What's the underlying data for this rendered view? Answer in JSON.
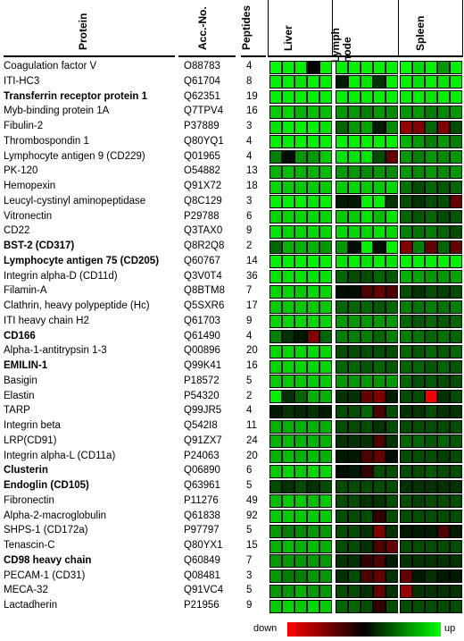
{
  "headers": {
    "protein": "Protein",
    "acc": "Acc.-No.",
    "peptides": "Peptides"
  },
  "tissues": [
    "Liver",
    "Lymph\nnode",
    "Spleen"
  ],
  "legend": {
    "low": "down",
    "high": "up"
  },
  "colors": {
    "up": "#00ff00",
    "down": "#ff0000",
    "mid": "#000000"
  },
  "rows": [
    {
      "name": "Coagulation factor V",
      "acc": "O88783",
      "pep": "4",
      "bold": false,
      "v": [
        1,
        0.95,
        0.95,
        0,
        0.95,
        0.95,
        0.95,
        0.95,
        0.95,
        0.95,
        1,
        0.85,
        0.95,
        0.6,
        0.95
      ]
    },
    {
      "name": "ITI-HC3",
      "acc": "Q61704",
      "pep": "8",
      "bold": false,
      "v": [
        0.95,
        0.95,
        0.9,
        0.95,
        0.95,
        0.1,
        0.95,
        0.9,
        0.2,
        0.95,
        0.95,
        0.9,
        0.95,
        0.9,
        0.95
      ]
    },
    {
      "name": "Transferrin receptor protein 1",
      "acc": "Q62351",
      "pep": "19",
      "bold": true,
      "v": [
        0.95,
        0.95,
        0.95,
        0.95,
        0.95,
        0.95,
        0.95,
        0.95,
        0.95,
        0.95,
        0.95,
        0.95,
        0.9,
        0.95,
        0.95
      ]
    },
    {
      "name": "Myb-binding protein 1A",
      "acc": "Q7TPV4",
      "pep": "16",
      "bold": false,
      "v": [
        0.8,
        0.85,
        0.7,
        0.75,
        0.75,
        0.6,
        0.6,
        0.5,
        0.6,
        0.55,
        0.6,
        0.6,
        0.5,
        0.55,
        0.6
      ]
    },
    {
      "name": "Fibulin-2",
      "acc": "P37889",
      "pep": "3",
      "bold": false,
      "v": [
        0.9,
        0.95,
        0.95,
        0.95,
        0.9,
        0.4,
        0.6,
        0.65,
        0.1,
        0.55,
        -0.6,
        -0.5,
        0.4,
        -0.5,
        0.3
      ]
    },
    {
      "name": "Thrombospondin 1",
      "acc": "Q80YQ1",
      "pep": "4",
      "bold": false,
      "v": [
        0.95,
        0.95,
        0.95,
        0.95,
        0.95,
        0.95,
        0.95,
        0.95,
        0.95,
        0.95,
        0.7,
        0.6,
        0.5,
        0.6,
        0.5
      ]
    },
    {
      "name": "Lymphocyte antigen 9 (CD229)",
      "acc": "Q01965",
      "pep": "4",
      "bold": false,
      "v": [
        0.5,
        0.05,
        0.6,
        0.6,
        0.8,
        0.9,
        0.9,
        0.9,
        0.3,
        -0.4,
        0.6,
        0.5,
        0.6,
        0.55,
        0.6
      ]
    },
    {
      "name": "PK-120",
      "acc": "O54882",
      "pep": "13",
      "bold": false,
      "v": [
        0.7,
        0.75,
        0.7,
        0.7,
        0.75,
        0.6,
        0.6,
        0.55,
        0.6,
        0.55,
        0.6,
        0.55,
        0.6,
        0.55,
        0.6
      ]
    },
    {
      "name": "Hemopexin",
      "acc": "Q91X72",
      "pep": "18",
      "bold": false,
      "v": [
        0.85,
        0.8,
        0.8,
        0.8,
        0.8,
        0.8,
        0.85,
        0.8,
        0.8,
        0.85,
        0.45,
        0.3,
        0.4,
        0.35,
        0.4
      ]
    },
    {
      "name": "Leucyl-cystinyl aminopeptidase",
      "acc": "Q8C129",
      "pep": "3",
      "bold": false,
      "v": [
        0.95,
        0.95,
        0.95,
        0.9,
        0.95,
        0.1,
        0.1,
        0.95,
        0.95,
        0.2,
        0.3,
        0.2,
        0.3,
        0.3,
        -0.4
      ]
    },
    {
      "name": "Vitronectin",
      "acc": "P29788",
      "pep": "6",
      "bold": false,
      "v": [
        0.85,
        0.85,
        0.85,
        0.85,
        0.85,
        0.8,
        0.8,
        0.9,
        0.75,
        0.9,
        0.4,
        0.35,
        0.4,
        0.3,
        0.35
      ]
    },
    {
      "name": "CD22",
      "acc": "Q3TAX0",
      "pep": "9",
      "bold": false,
      "v": [
        0.9,
        0.85,
        0.85,
        0.85,
        0.85,
        0.85,
        0.85,
        0.85,
        0.9,
        0.85,
        0.5,
        0.45,
        0.5,
        0.4,
        0.3
      ]
    },
    {
      "name": "BST-2  (CD317)",
      "acc": "Q8R2Q8",
      "pep": "2",
      "bold": true,
      "v": [
        0.4,
        0.7,
        0.7,
        0.7,
        0.6,
        0.6,
        0.05,
        0.95,
        0.05,
        0.95,
        -0.5,
        0.5,
        -0.4,
        0.4,
        -0.4
      ]
    },
    {
      "name": "Lymphocyte antigen 75 (CD205)",
      "acc": "Q60767",
      "pep": "14",
      "bold": true,
      "v": [
        0.95,
        0.95,
        0.95,
        0.95,
        0.95,
        0.9,
        0.95,
        0.9,
        0.95,
        0.9,
        0.95,
        0.95,
        0.95,
        0.95,
        0.95
      ]
    },
    {
      "name": "Integrin alpha-D (CD11d)",
      "acc": "Q3V0T4",
      "pep": "36",
      "bold": false,
      "v": [
        0.9,
        0.9,
        0.9,
        0.9,
        0.9,
        0.4,
        0.3,
        0.3,
        0.4,
        0.35,
        0.7,
        0.65,
        0.6,
        0.6,
        0.65
      ]
    },
    {
      "name": "Filamin-A",
      "acc": "Q8BTM8",
      "pep": "7",
      "bold": false,
      "v": [
        0.85,
        0.85,
        0.8,
        0.85,
        0.85,
        0.05,
        0.05,
        -0.3,
        -0.4,
        -0.3,
        0.3,
        0.2,
        0.3,
        0.25,
        0.3
      ]
    },
    {
      "name": "Clathrin, heavy polypeptide (Hc)",
      "acc": "Q5SXR6",
      "pep": "17",
      "bold": false,
      "v": [
        0.8,
        0.8,
        0.8,
        0.8,
        0.8,
        0.4,
        0.4,
        0.4,
        0.35,
        0.4,
        0.5,
        0.45,
        0.5,
        0.45,
        0.5
      ]
    },
    {
      "name": "ITI heavy chain H2",
      "acc": "Q61703",
      "pep": "9",
      "bold": false,
      "v": [
        0.85,
        0.85,
        0.85,
        0.85,
        0.85,
        0.6,
        0.6,
        0.6,
        0.6,
        0.6,
        0.4,
        0.35,
        0.4,
        0.35,
        0.4
      ]
    },
    {
      "name": "CD166",
      "acc": "Q61490",
      "pep": "4",
      "bold": true,
      "v": [
        0.5,
        0.2,
        0.1,
        -0.5,
        0.4,
        0.5,
        0.5,
        0.5,
        0.4,
        0.5,
        0.5,
        0.45,
        0.4,
        0.45,
        0.4
      ]
    },
    {
      "name": "Alpha-1-antitrypsin 1-3",
      "acc": "Q00896",
      "pep": "20",
      "bold": false,
      "v": [
        0.85,
        0.85,
        0.85,
        0.85,
        0.85,
        0.3,
        0.3,
        0.3,
        0.3,
        0.3,
        0.4,
        0.35,
        0.4,
        0.35,
        0.4
      ]
    },
    {
      "name": "EMILIN-1",
      "acc": "Q99K41",
      "pep": "16",
      "bold": true,
      "v": [
        0.85,
        0.85,
        0.85,
        0.85,
        0.85,
        0.4,
        0.4,
        0.35,
        0.4,
        0.35,
        0.4,
        0.4,
        0.35,
        0.4,
        0.35
      ]
    },
    {
      "name": "Basigin",
      "acc": "P18572",
      "pep": "5",
      "bold": false,
      "v": [
        0.8,
        0.8,
        0.8,
        0.8,
        0.8,
        0.6,
        0.6,
        0.6,
        0.6,
        0.6,
        0.4,
        0.3,
        0.35,
        0.3,
        0.3
      ]
    },
    {
      "name": "Elastin",
      "acc": "P54320",
      "pep": "2",
      "bold": false,
      "v": [
        0.95,
        0.2,
        0.4,
        0.7,
        0.7,
        0.2,
        0.2,
        -0.4,
        -0.5,
        0.1,
        0.3,
        0.3,
        -0.95,
        0.2,
        0.3
      ]
    },
    {
      "name": "TARP",
      "acc": "Q99JR5",
      "pep": "4",
      "bold": false,
      "v": [
        0.1,
        0.2,
        0.15,
        0.2,
        0.1,
        0.3,
        0.3,
        0.4,
        -0.3,
        0.3,
        0.2,
        0.2,
        0.3,
        0.2,
        0.2
      ]
    },
    {
      "name": "Integrin beta",
      "acc": "Q542I8",
      "pep": "11",
      "bold": false,
      "v": [
        0.7,
        0.7,
        0.7,
        0.7,
        0.7,
        0.3,
        0.3,
        0.3,
        0.2,
        0.3,
        0.3,
        0.3,
        0.3,
        0.3,
        0.3
      ]
    },
    {
      "name": "LRP(CD91)",
      "acc": "Q91ZX7",
      "pep": "24",
      "bold": false,
      "v": [
        0.7,
        0.75,
        0.7,
        0.7,
        0.7,
        0.2,
        0.2,
        0.2,
        -0.3,
        0.2,
        0.4,
        0.4,
        0.35,
        0.4,
        0.35
      ]
    },
    {
      "name": "Integrin alpha-L (CD11a)",
      "acc": "P24063",
      "pep": "20",
      "bold": false,
      "v": [
        0.7,
        0.75,
        0.7,
        0.75,
        0.7,
        0.1,
        0.1,
        -0.3,
        -0.4,
        0.05,
        0.3,
        0.3,
        0.3,
        0.25,
        0.3
      ]
    },
    {
      "name": "Clusterin",
      "acc": "Q06890",
      "pep": "6",
      "bold": true,
      "v": [
        0.8,
        0.85,
        0.8,
        0.85,
        0.85,
        0.05,
        0.1,
        -0.2,
        0.3,
        0.3,
        0.3,
        0.3,
        0.35,
        0.3,
        0.3
      ]
    },
    {
      "name": "Endoglin (CD105)",
      "acc": "Q63961",
      "pep": "5",
      "bold": true,
      "v": [
        0.3,
        0.2,
        0.3,
        0.2,
        0.3,
        0.3,
        0.3,
        0.3,
        0.3,
        0.3,
        0.2,
        0.2,
        0.2,
        0.2,
        0.2
      ]
    },
    {
      "name": "Fibronectin",
      "acc": "P11276",
      "pep": "49",
      "bold": false,
      "v": [
        0.75,
        0.8,
        0.8,
        0.75,
        0.8,
        0.3,
        0.3,
        0.2,
        0.2,
        0.3,
        0.3,
        0.25,
        0.3,
        0.3,
        0.3
      ]
    },
    {
      "name": "Alpha-2-macroglobulin",
      "acc": "Q61838",
      "pep": "92",
      "bold": false,
      "v": [
        0.8,
        0.8,
        0.8,
        0.8,
        0.8,
        0.3,
        0.3,
        0.3,
        -0.2,
        0.3,
        0.3,
        0.3,
        0.3,
        0.3,
        0.3
      ]
    },
    {
      "name": "SHPS-1 (CD172a)",
      "acc": "P97797",
      "pep": "5",
      "bold": false,
      "v": [
        0.6,
        0.5,
        0.55,
        0.6,
        0.6,
        0.3,
        0.3,
        0.2,
        -0.5,
        0.2,
        0.1,
        0.1,
        0.1,
        -0.3,
        0.1
      ]
    },
    {
      "name": "Tenascin-C",
      "acc": "Q80YX1",
      "pep": "15",
      "bold": false,
      "v": [
        0.7,
        0.75,
        0.7,
        0.75,
        0.7,
        0.3,
        0.3,
        0.2,
        -0.3,
        -0.4,
        0.3,
        0.3,
        0.3,
        0.3,
        0.3
      ]
    },
    {
      "name": "CD98 heavy chain",
      "acc": "Q60849",
      "pep": "7",
      "bold": true,
      "v": [
        0.6,
        0.6,
        0.6,
        0.6,
        0.6,
        0.2,
        0.2,
        -0.2,
        -0.3,
        0.1,
        0.2,
        0.2,
        0.2,
        0.2,
        0.2
      ]
    },
    {
      "name": "PECAM-1 (CD31)",
      "acc": "Q08481",
      "pep": "3",
      "bold": false,
      "v": [
        0.6,
        0.5,
        0.5,
        0.6,
        0.6,
        0.2,
        0.3,
        -0.3,
        -0.4,
        0.2,
        -0.4,
        0.1,
        0.2,
        0.1,
        0.1
      ]
    },
    {
      "name": "MECA-32",
      "acc": "Q91VC4",
      "pep": "5",
      "bold": false,
      "v": [
        0.6,
        0.6,
        0.7,
        0.6,
        0.6,
        0.3,
        0.3,
        0.2,
        -0.4,
        0.2,
        -0.6,
        0.2,
        0.2,
        0.2,
        0.2
      ]
    },
    {
      "name": "Lactadherin",
      "acc": "P21956",
      "pep": "9",
      "bold": false,
      "v": [
        0.8,
        0.85,
        0.8,
        0.85,
        0.8,
        0.4,
        0.4,
        0.3,
        -0.2,
        0.3,
        0.3,
        0.3,
        0.3,
        0.3,
        0.3
      ]
    }
  ]
}
